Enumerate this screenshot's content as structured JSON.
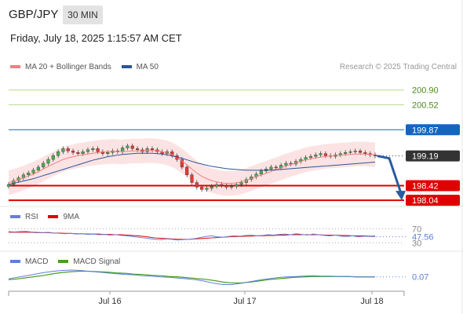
{
  "header": {
    "symbol": "GBP/JPY",
    "timeframe": "30 MIN",
    "datetime": "Friday, July 18, 2025 1:15:57 AM CET"
  },
  "legend_main": [
    {
      "label": "MA 20 + Bollinger Bands",
      "color": "#f08080"
    },
    {
      "label": "MA 50",
      "color": "#2a5599"
    }
  ],
  "credit": "Research © 2025 Trading Central",
  "legend_rsi": [
    {
      "label": "RSI",
      "color": "#6a7fd4"
    },
    {
      "label": "9MA",
      "color": "#e00000"
    }
  ],
  "legend_macd": [
    {
      "label": "MACD",
      "color": "#5b7fd9"
    },
    {
      "label": "MACD Signal",
      "color": "#44a020"
    }
  ],
  "colors": {
    "resistance": "#1565c0",
    "support": "#e00000",
    "target_line": "#b5d98a",
    "current_tag": "#333333",
    "arrow": "#2a5aa0",
    "band_fill": "#fbdcdc",
    "candle_up": "#4caf50",
    "candle_down": "#e53935"
  },
  "chart_data": {
    "type": "candlestick",
    "symbol": "GBP/JPY",
    "interval": "30 MIN",
    "price_levels": [
      {
        "value": 200.9,
        "label": "200.90",
        "kind": "target"
      },
      {
        "value": 200.52,
        "label": "200.52",
        "kind": "target"
      },
      {
        "value": 199.87,
        "label": "199.87",
        "kind": "resistance"
      },
      {
        "value": 199.19,
        "label": "199.19",
        "kind": "current"
      },
      {
        "value": 198.42,
        "label": "198.42",
        "kind": "support"
      },
      {
        "value": 198.04,
        "label": "198.04",
        "kind": "support"
      }
    ],
    "forecast": {
      "from": 199.19,
      "to": 198.04,
      "direction": "down"
    },
    "x_ticks": [
      "Jul 16",
      "Jul 17",
      "Jul 18"
    ],
    "price_range": [
      197.9,
      201.2
    ],
    "close": [
      198.45,
      198.55,
      198.62,
      198.7,
      198.75,
      198.82,
      198.9,
      199.0,
      199.1,
      199.2,
      199.3,
      199.38,
      199.32,
      199.28,
      199.25,
      199.3,
      199.35,
      199.38,
      199.3,
      199.25,
      199.28,
      199.32,
      199.3,
      199.4,
      199.45,
      199.38,
      199.35,
      199.3,
      199.38,
      199.35,
      199.3,
      199.25,
      199.3,
      199.2,
      199.1,
      198.9,
      198.7,
      198.5,
      198.38,
      198.32,
      198.35,
      198.4,
      198.45,
      198.42,
      198.38,
      198.4,
      198.45,
      198.5,
      198.58,
      198.65,
      198.72,
      198.8,
      198.85,
      198.9,
      198.88,
      198.95,
      199.0,
      198.98,
      199.05,
      199.1,
      199.15,
      199.18,
      199.22,
      199.25,
      199.2,
      199.18,
      199.22,
      199.25,
      199.28,
      199.3,
      199.32,
      199.28,
      199.25,
      199.22,
      199.19
    ],
    "ma20": [
      198.5,
      198.53,
      198.57,
      198.62,
      198.67,
      198.72,
      198.78,
      198.85,
      198.92,
      198.98,
      199.04,
      199.1,
      199.14,
      199.17,
      199.2,
      199.22,
      199.24,
      199.26,
      199.28,
      199.29,
      199.3,
      199.31,
      199.3,
      199.3,
      199.31,
      199.32,
      199.32,
      199.32,
      199.33,
      199.33,
      199.32,
      199.3,
      199.27,
      199.22,
      199.15,
      199.06,
      198.96,
      198.85,
      198.75,
      198.66,
      198.6,
      198.55,
      198.52,
      198.49,
      198.48,
      198.48,
      198.49,
      198.52,
      198.56,
      198.6,
      198.65,
      198.7,
      198.74,
      198.79,
      198.83,
      198.88,
      198.93,
      198.97,
      199.01,
      199.05,
      199.09,
      199.12,
      199.14,
      199.16,
      199.18,
      199.19,
      199.2,
      199.21,
      199.22,
      199.23,
      199.24,
      199.24,
      199.24,
      199.23,
      199.22
    ],
    "ma50": [
      198.45,
      198.48,
      198.51,
      198.54,
      198.57,
      198.6,
      198.64,
      198.68,
      198.72,
      198.76,
      198.8,
      198.84,
      198.88,
      198.92,
      198.96,
      199.0,
      199.04,
      199.08,
      199.11,
      199.14,
      199.17,
      199.19,
      199.21,
      199.23,
      199.24,
      199.25,
      199.26,
      199.26,
      199.26,
      199.26,
      199.25,
      199.24,
      199.22,
      199.19,
      199.16,
      199.13,
      199.09,
      199.05,
      199.01,
      198.98,
      198.95,
      198.92,
      198.9,
      198.88,
      198.86,
      198.85,
      198.84,
      198.83,
      198.82,
      198.82,
      198.82,
      198.82,
      198.82,
      198.83,
      198.83,
      198.84,
      198.85,
      198.86,
      198.87,
      198.88,
      198.89,
      198.9,
      198.91,
      198.92,
      198.93,
      198.94,
      198.95,
      198.96,
      198.97,
      198.98,
      198.99,
      199.0,
      199.01,
      199.02,
      199.03
    ],
    "rsi": {
      "levels": [
        70,
        30
      ],
      "last_value": 47.56,
      "level_labels": [
        "70",
        "47.56",
        "30"
      ],
      "rsi": [
        62,
        61,
        62,
        63,
        61,
        60,
        59,
        60,
        58,
        57,
        56,
        57,
        55,
        56,
        54,
        55,
        53,
        54,
        52,
        53,
        51,
        50,
        48,
        46,
        44,
        42,
        40,
        39,
        41,
        40,
        38,
        39,
        40,
        42,
        45,
        48,
        50,
        47,
        46,
        48,
        50,
        49,
        51,
        52,
        50,
        51,
        53,
        52,
        54,
        55,
        53,
        56,
        54,
        52,
        55,
        53,
        51,
        50,
        52,
        49,
        48,
        50,
        47,
        49,
        48,
        47.56
      ],
      "ma9": [
        60,
        60,
        60,
        60,
        60,
        59,
        59,
        59,
        58,
        58,
        57,
        57,
        56,
        56,
        55,
        55,
        55,
        54,
        54,
        53,
        53,
        52,
        51,
        50,
        48,
        46,
        44,
        43,
        42,
        41,
        40,
        40,
        40,
        41,
        42,
        43,
        44,
        45,
        46,
        47,
        48,
        48,
        49,
        49,
        50,
        50,
        51,
        51,
        52,
        52,
        53,
        53,
        53,
        53,
        53,
        53,
        52,
        52,
        52,
        51,
        51,
        50,
        50,
        50,
        49,
        49
      ]
    },
    "macd": {
      "last_value": 0.07,
      "last_label": "0.07",
      "macd": [
        0.02,
        0.06,
        0.1,
        0.14,
        0.18,
        0.21,
        0.23,
        0.24,
        0.23,
        0.21,
        0.19,
        0.17,
        0.15,
        0.13,
        0.12,
        0.1,
        0.09,
        0.07,
        0.06,
        0.04,
        0.02,
        0.0,
        -0.04,
        -0.09,
        -0.12,
        -0.12,
        -0.09,
        -0.05,
        -0.01,
        0.02,
        0.05,
        0.07,
        0.08,
        0.09,
        0.1,
        0.09,
        0.09,
        0.08,
        0.08,
        0.07,
        0.07,
        0.07
      ],
      "signal": [
        0.0,
        0.02,
        0.05,
        0.08,
        0.11,
        0.15,
        0.18,
        0.2,
        0.21,
        0.21,
        0.2,
        0.19,
        0.17,
        0.16,
        0.14,
        0.13,
        0.11,
        0.1,
        0.08,
        0.07,
        0.05,
        0.03,
        0.01,
        -0.02,
        -0.06,
        -0.08,
        -0.08,
        -0.06,
        -0.03,
        0.0,
        0.02,
        0.04,
        0.06,
        0.07,
        0.08,
        0.08,
        0.08,
        0.08,
        0.08,
        0.07,
        0.07,
        0.07
      ]
    }
  }
}
